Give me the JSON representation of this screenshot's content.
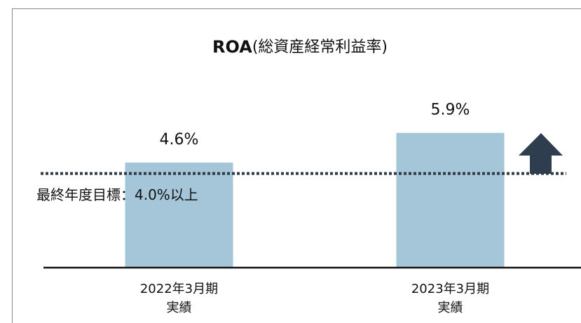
{
  "chart_data": {
    "type": "bar",
    "title": "ROA",
    "title_suffix": "(総資産経常利益率)",
    "categories": [
      [
        "2022年3月期",
        "実績"
      ],
      [
        "2023年3月期",
        "実績"
      ]
    ],
    "values": [
      4.6,
      5.9
    ],
    "value_labels": [
      "4.6%",
      "5.9%"
    ],
    "color": "#a5c5d8",
    "ylim": [
      0,
      10
    ],
    "target": {
      "value": 4.0,
      "label": "最終年度目標：4.0%以上"
    }
  }
}
